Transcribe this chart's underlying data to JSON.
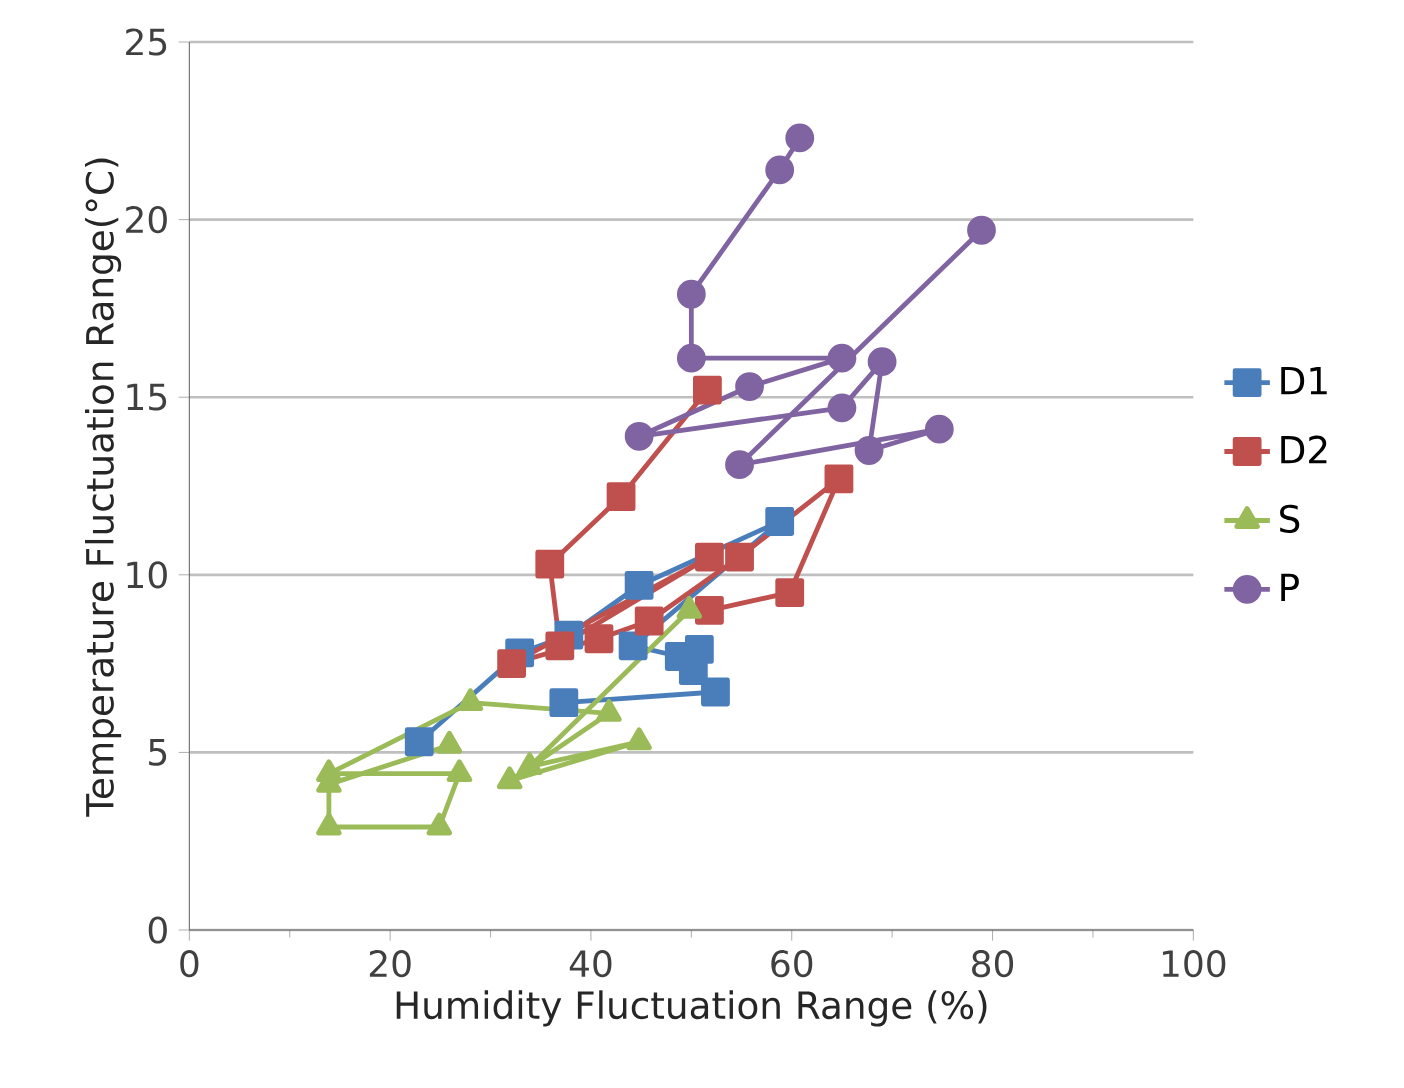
{
  "chart_data": {
    "type": "line",
    "xlabel": "Humidity Fluctuation Range (%)",
    "ylabel": "Temperature  Fluctuation Range(°C)",
    "xlim": [
      0,
      100
    ],
    "xticks": [
      0,
      20,
      40,
      60,
      80,
      100
    ],
    "ylim": [
      0,
      25
    ],
    "yticks": [
      0,
      5,
      10,
      15,
      20,
      25
    ],
    "grid": "y",
    "legend": "right",
    "series": [
      {
        "name": "D1",
        "color": "#4a7ebb",
        "marker": "square",
        "x": [
          22.9,
          32.9,
          37.8,
          44.8,
          58.8,
          44.2,
          48.8,
          50.8,
          50.2,
          52.4,
          37.3
        ],
        "values": [
          5.3,
          7.8,
          8.3,
          9.7,
          11.5,
          8.0,
          7.7,
          7.9,
          7.3,
          6.7,
          6.4
        ]
      },
      {
        "name": "D2",
        "color": "#c0504d",
        "marker": "square",
        "x": [
          51.6,
          43,
          35.9,
          36.9,
          51.8,
          32.1,
          40.8,
          45.8,
          54.8,
          64.7,
          59.8,
          51.8
        ],
        "values": [
          15.2,
          12.2,
          10.3,
          8.0,
          10.5,
          7.5,
          8.2,
          8.7,
          10.5,
          12.7,
          9.5,
          9.0
        ]
      },
      {
        "name": "S",
        "color": "#9bbb59",
        "marker": "triangle",
        "x": [
          49.8,
          33.9,
          44.8,
          31.9,
          41.8,
          28.0,
          13.9,
          26.9,
          24.9,
          13.9,
          13.9,
          25.9
        ],
        "values": [
          9.0,
          4.6,
          5.3,
          4.2,
          6.1,
          6.4,
          4.4,
          4.4,
          2.9,
          2.9,
          4.1,
          5.2
        ]
      },
      {
        "name": "P",
        "color": "#8064a2",
        "marker": "circle",
        "x": [
          60.8,
          58.8,
          50,
          50,
          65,
          55.8,
          44.8,
          65,
          69,
          67.7,
          74.7,
          54.8,
          78.9
        ],
        "values": [
          22.3,
          21.4,
          17.9,
          16.1,
          16.1,
          15.3,
          13.9,
          14.7,
          16.0,
          13.5,
          14.1,
          13.1,
          19.7
        ]
      }
    ]
  }
}
